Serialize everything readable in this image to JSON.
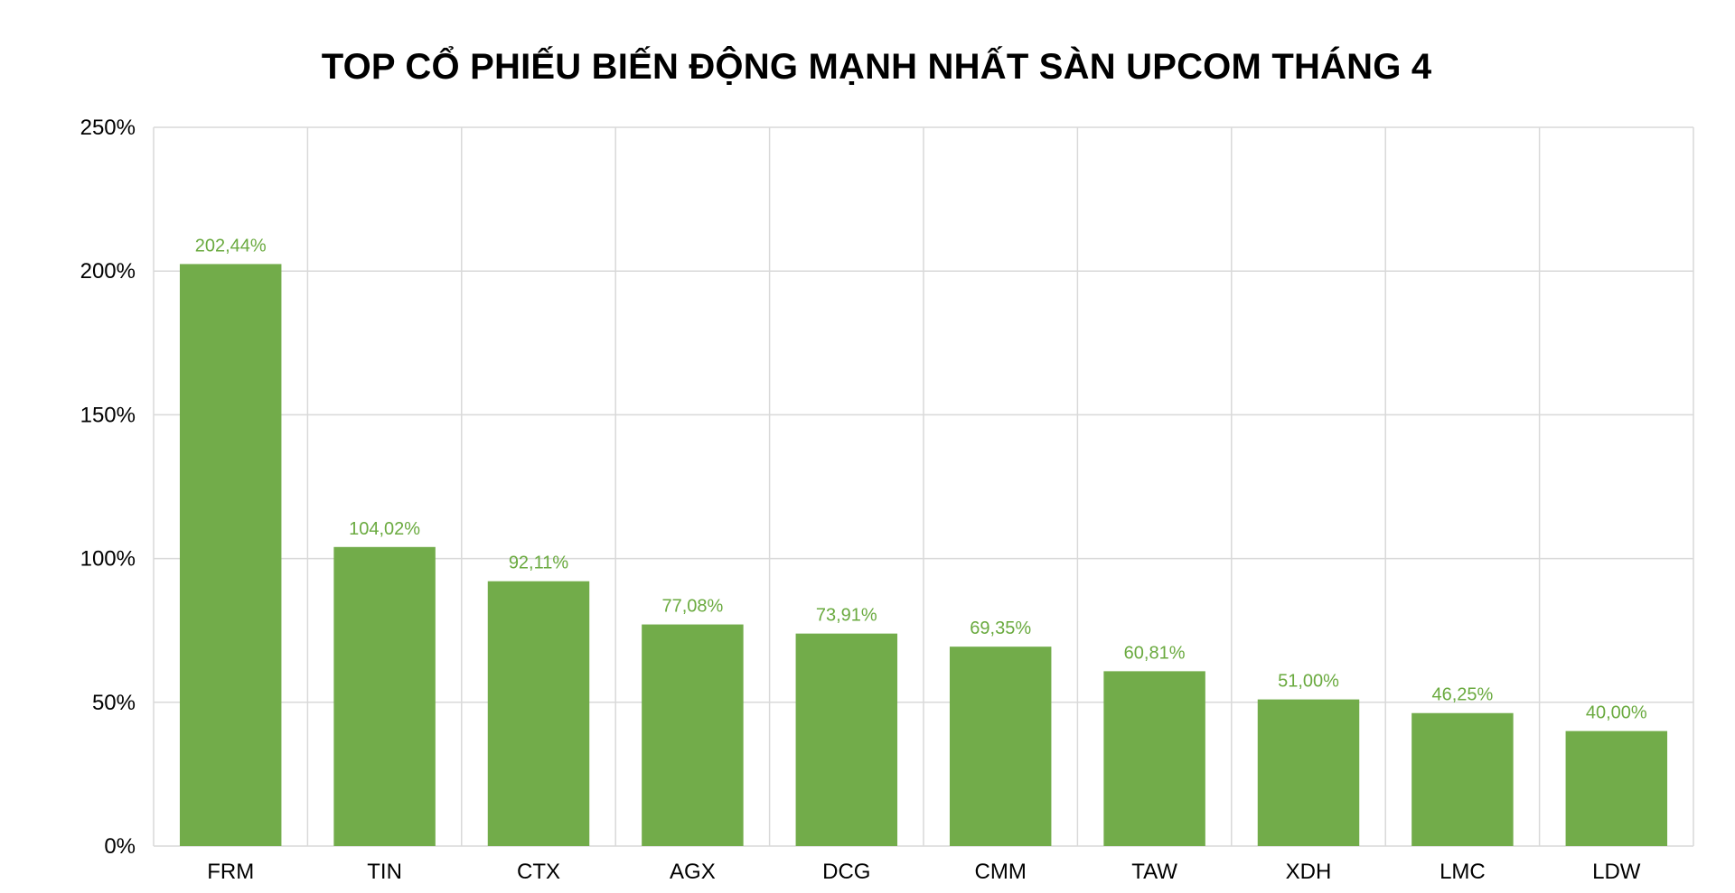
{
  "chart_data": {
    "type": "bar",
    "title": "TOP CỔ PHIẾU BIẾN ĐỘNG MẠNH NHẤT SÀN UPCOM THÁNG 4",
    "xlabel": "",
    "ylabel": "",
    "categories": [
      "FRM",
      "TIN",
      "CTX",
      "AGX",
      "DCG",
      "CMM",
      "TAW",
      "XDH",
      "LMC",
      "LDW"
    ],
    "values": [
      202.44,
      104.02,
      92.11,
      77.08,
      73.91,
      69.35,
      60.81,
      51.0,
      46.25,
      40.0
    ],
    "data_labels": [
      "202,44%",
      "104,02%",
      "92,11%",
      "77,08%",
      "73,91%",
      "69,35%",
      "60,81%",
      "51,00%",
      "46,25%",
      "40,00%"
    ],
    "ylim": [
      0,
      250
    ],
    "yticks": [
      0,
      50,
      100,
      150,
      200,
      250
    ],
    "ytick_labels": [
      "0%",
      "50%",
      "100%",
      "150%",
      "200%",
      "250%"
    ],
    "grid": true,
    "legend": "none",
    "colors": {
      "bar": "#72AC4A",
      "data_label": "#6AAA3F",
      "grid": "#D9D9D9"
    }
  }
}
